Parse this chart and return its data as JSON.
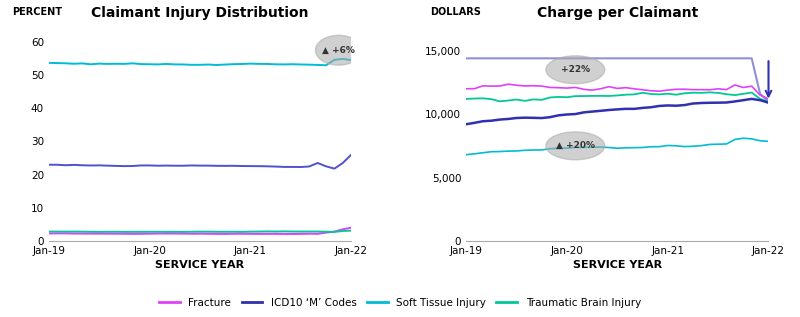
{
  "left_title": "Claimant Injury Distribution",
  "right_title": "Charge per Claimant",
  "left_ylabel": "PERCENT",
  "right_ylabel": "DOLLARS",
  "xlabel": "SERVICE YEAR",
  "x_labels": [
    "Jan-19",
    "Jan-20",
    "Jan-21",
    "Jan-22"
  ],
  "left_ylim": [
    0,
    65
  ],
  "left_yticks": [
    0,
    10,
    20,
    30,
    40,
    50,
    60
  ],
  "right_ylim": [
    0,
    17000
  ],
  "right_yticks": [
    0,
    5000,
    10000,
    15000
  ],
  "colors": {
    "fracture": "#e040fb",
    "icd10": "#5050d0",
    "soft_tissue": "#00bcd4",
    "tbi": "#00c896"
  },
  "icd10_flat_color": "#9090d8",
  "fracture_right_color": "#e040fb",
  "soft_tissue_right_color": "#00c896",
  "icd10_right_color": "#3030b0",
  "tbi_right_color": "#00bcd4",
  "annotation_color": "#aaaaaa",
  "bg_color": "#ffffff"
}
